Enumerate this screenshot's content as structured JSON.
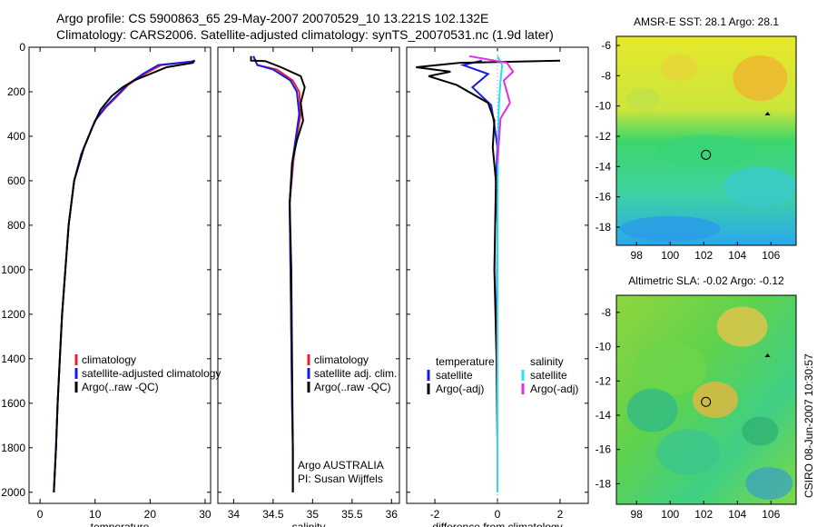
{
  "header": {
    "line1": "Argo profile: CS 5900863_65 29-May-2007 20070529_10 13.221S 102.132E",
    "line2": "Climatology: CARS2006. Satellite-adjusted climatology: synTS_20070531.nc (1.9d later)"
  },
  "side_stamp": "CSIRO 08-Jun-2007 10:30:57",
  "colors": {
    "climatology": "#e8202a",
    "satellite": "#1a1ae6",
    "argo": "#000000",
    "salinity_sat": "#22e3ee",
    "salinity_argo": "#e030e0"
  },
  "chart_data": [
    {
      "type": "line",
      "xlabel": "temperature",
      "xlim": [
        -2,
        31
      ],
      "ylim": [
        2050,
        0
      ],
      "xticks": [
        0,
        10,
        20,
        30
      ],
      "yticks": [
        0,
        200,
        400,
        600,
        800,
        1000,
        1200,
        1400,
        1600,
        1800,
        2000
      ],
      "legend": [
        "climatology",
        "satellite-adjusted climatology",
        "Argo(..raw -QC)"
      ],
      "series": [
        {
          "name": "climatology",
          "color": "#e8202a",
          "x": [
            28.2,
            27.5,
            22,
            19,
            16,
            14,
            12,
            10,
            9,
            7.5,
            6.2,
            5.2,
            4.6,
            4.0,
            3.6,
            3.2,
            2.9,
            2.7,
            2.5
          ],
          "y": [
            60,
            65,
            80,
            120,
            170,
            220,
            270,
            330,
            390,
            480,
            600,
            800,
            1000,
            1200,
            1400,
            1600,
            1800,
            1900,
            2000
          ]
        },
        {
          "name": "satellite-adjusted climatology",
          "color": "#1a1ae6",
          "x": [
            28.1,
            27.4,
            21.5,
            18.7,
            15.8,
            13.8,
            11.8,
            10,
            9,
            7.5,
            6.2,
            5.2,
            4.6,
            4.0,
            3.6,
            3.2,
            2.9,
            2.7,
            2.5
          ],
          "y": [
            60,
            65,
            80,
            120,
            170,
            220,
            270,
            330,
            390,
            480,
            600,
            800,
            1000,
            1200,
            1400,
            1600,
            1800,
            1900,
            2000
          ]
        },
        {
          "name": "Argo(..raw -QC)",
          "color": "#000000",
          "x": [
            28.0,
            27.8,
            23,
            20,
            17,
            15,
            13,
            11,
            9.5,
            8,
            6.2,
            5.2,
            4.6,
            4.0,
            3.6,
            3.2,
            2.9,
            2.7,
            2.5
          ],
          "y": [
            60,
            70,
            90,
            120,
            150,
            180,
            220,
            280,
            360,
            450,
            600,
            800,
            1000,
            1200,
            1400,
            1600,
            1800,
            1900,
            2000
          ]
        }
      ]
    },
    {
      "type": "line",
      "xlabel": "salinity",
      "xlim": [
        33.8,
        36.1
      ],
      "ylim": [
        2050,
        0
      ],
      "xticks": [
        34,
        34.5,
        35,
        35.5,
        36
      ],
      "legend": [
        "climatology",
        "satellite adj. clim.",
        "Argo(..raw -QC)"
      ],
      "annotation": [
        "Argo AUSTRALIA",
        "PI: Susan Wijffels"
      ],
      "series": [
        {
          "name": "climatology",
          "color": "#e8202a",
          "x": [
            34.25,
            34.3,
            34.55,
            34.75,
            34.83,
            34.85,
            34.8,
            34.76,
            34.71,
            34.72,
            34.73,
            34.74,
            34.75,
            34.75
          ],
          "y": [
            40,
            80,
            100,
            150,
            200,
            300,
            400,
            500,
            700,
            1000,
            1300,
            1600,
            1800,
            2000
          ]
        },
        {
          "name": "satellite adj. clim.",
          "color": "#1a1ae6",
          "x": [
            34.25,
            34.3,
            34.5,
            34.72,
            34.8,
            34.83,
            34.79,
            34.75,
            34.71,
            34.72,
            34.73,
            34.74,
            34.75,
            34.75
          ],
          "y": [
            40,
            80,
            100,
            150,
            200,
            300,
            400,
            500,
            700,
            1000,
            1300,
            1600,
            1800,
            2000
          ]
        },
        {
          "name": "Argo(..raw -QC)",
          "color": "#000000",
          "x": [
            34.22,
            34.22,
            34.4,
            34.6,
            34.85,
            34.9,
            34.85,
            34.88,
            34.8,
            34.74,
            34.71,
            34.73,
            34.74,
            34.75,
            34.75
          ],
          "y": [
            40,
            60,
            62,
            90,
            130,
            180,
            250,
            330,
            420,
            520,
            700,
            1000,
            1400,
            1800,
            2000
          ]
        }
      ]
    },
    {
      "type": "line",
      "xlabel": "difference from climatology",
      "xlim": [
        -2.9,
        2.9
      ],
      "ylim": [
        2050,
        0
      ],
      "xticks": [
        -2,
        0,
        2
      ],
      "legend": [
        "temperature",
        "satellite",
        "Argo(-adj)",
        "salinity",
        "satellite",
        "Argo(-adj)"
      ],
      "series": [
        {
          "name": "temperature satellite",
          "color": "#1a1ae6",
          "x": [
            -0.5,
            -1.1,
            -0.3,
            -0.8,
            -0.2,
            -0.1,
            0,
            -0.05,
            0,
            -0.02,
            0,
            0
          ],
          "y": [
            60,
            80,
            120,
            180,
            260,
            350,
            450,
            600,
            800,
            1200,
            1600,
            2000
          ]
        },
        {
          "name": "temperature Argo(-adj)",
          "color": "#000000",
          "x": [
            2.0,
            -1.2,
            -2.6,
            -1.5,
            -2.2,
            -1.3,
            -0.3,
            -0.1,
            -0.15,
            -0.05,
            -0.1,
            -0.03,
            0
          ],
          "y": [
            60,
            70,
            90,
            110,
            130,
            170,
            250,
            330,
            450,
            600,
            1000,
            1400,
            1800
          ]
        },
        {
          "name": "salinity satellite",
          "color": "#22e3ee",
          "x": [
            0,
            0.15,
            0.1,
            0.05,
            0.02,
            0,
            0,
            0
          ],
          "y": [
            40,
            80,
            150,
            250,
            400,
            800,
            1400,
            2000
          ]
        },
        {
          "name": "salinity Argo(-adj)",
          "color": "#e030e0",
          "x": [
            -0.9,
            0.3,
            0.5,
            0.2,
            0.4,
            0.1,
            0.05,
            0
          ],
          "y": [
            40,
            70,
            110,
            150,
            250,
            320,
            420,
            520
          ]
        }
      ]
    },
    {
      "type": "heatmap",
      "title": "AMSR-E SST: 28.1  Argo: 28.1",
      "xlim": [
        96.8,
        107.5
      ],
      "ylim": [
        -19.2,
        -5.4
      ],
      "xticks": [
        98,
        100,
        102,
        104,
        106
      ],
      "yticks": [
        -6,
        -8,
        -10,
        -12,
        -14,
        -16,
        -18
      ],
      "marker": {
        "lon": 102.132,
        "lat": -13.221
      }
    },
    {
      "type": "heatmap",
      "title": "Altimetric SLA: -0.02  Argo: -0.12",
      "xlim": [
        96.8,
        107.5
      ],
      "ylim": [
        -19.2,
        -7.0
      ],
      "xticks": [
        98,
        100,
        102,
        104,
        106
      ],
      "yticks": [
        -8,
        -10,
        -12,
        -14,
        -16,
        -18
      ],
      "marker": {
        "lon": 102.132,
        "lat": -13.221
      }
    }
  ]
}
